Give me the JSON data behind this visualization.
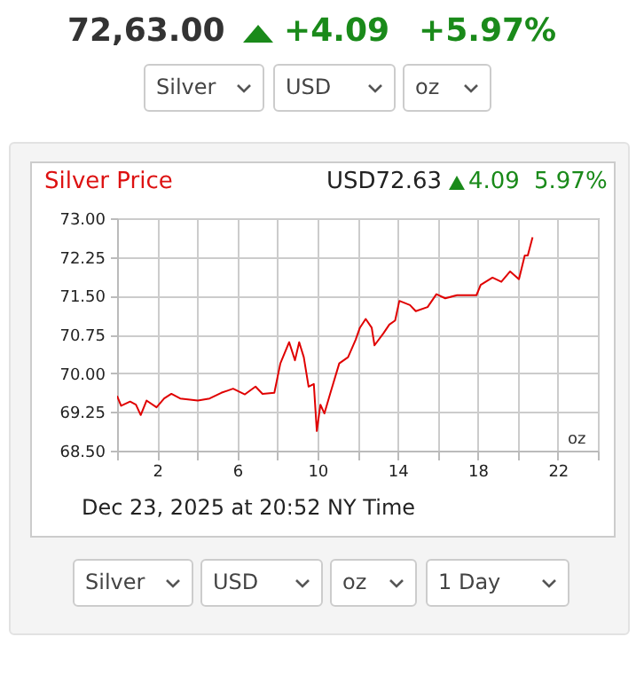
{
  "chart_data": {
    "type": "line",
    "title": "Silver Price",
    "annotations": [
      "72,63.00",
      "+4.09",
      "+5.97%",
      "Silver",
      "USD",
      "oz",
      "USD72.63",
      "4.09",
      "5.97%",
      "oz",
      "Dec 23, 2025 at 20:52 NY Time",
      "Silver",
      "USD",
      "oz",
      "1 Day"
    ],
    "x": [
      0,
      0.2,
      0.65,
      0.94,
      1.18,
      1.47,
      1.97,
      2.35,
      2.71,
      3.15,
      4.03,
      4.62,
      5.2,
      5.79,
      6.38,
      6.91,
      7.26,
      7.85,
      8.15,
      8.59,
      8.88,
      9.09,
      9.32,
      9.56,
      9.82,
      9.97,
      10.15,
      10.35,
      10.65,
      11.09,
      11.53,
      11.91,
      12.12,
      12.41,
      12.71,
      12.85,
      13.29,
      13.59,
      13.88,
      14.09,
      14.62,
      14.91,
      15.5,
      15.94,
      16.38,
      16.97,
      17.94,
      18.15,
      18.74,
      19.18,
      19.62,
      20.06,
      20.35,
      20.5,
      20.74
    ],
    "series": [
      {
        "color": "#e00000",
        "values": [
          69.56,
          69.37,
          69.45,
          69.39,
          69.19,
          69.47,
          69.34,
          69.51,
          69.6,
          69.51,
          69.47,
          69.51,
          69.62,
          69.7,
          69.59,
          69.74,
          69.6,
          69.62,
          70.19,
          70.6,
          70.25,
          70.6,
          70.31,
          69.74,
          69.79,
          68.88,
          69.39,
          69.22,
          69.62,
          70.19,
          70.31,
          70.65,
          70.88,
          71.05,
          70.88,
          70.54,
          70.77,
          70.94,
          71.02,
          71.4,
          71.32,
          71.2,
          71.28,
          71.53,
          71.45,
          71.51,
          71.51,
          71.71,
          71.85,
          71.77,
          71.97,
          71.82,
          72.28,
          72.28,
          72.63
        ]
      }
    ],
    "xlim": [
      0,
      24
    ],
    "xticks": [
      {
        "value": 0,
        "label": null
      },
      2,
      {
        "value": 4,
        "label": null
      },
      6,
      {
        "value": 8,
        "label": null
      },
      10,
      {
        "value": 12,
        "label": null
      },
      14,
      {
        "value": 16,
        "label": null
      },
      18,
      {
        "value": 20,
        "label": null
      },
      22,
      {
        "value": 24,
        "label": null
      }
    ],
    "ylim": [
      68.5,
      73
    ],
    "yticks": [
      {
        "value": 68.5,
        "label": "68.50"
      },
      {
        "value": 69.25,
        "label": "69.25"
      },
      {
        "value": 70,
        "label": "70.00"
      },
      {
        "value": 70.75,
        "label": "70.75"
      },
      {
        "value": 71.5,
        "label": "71.50"
      },
      {
        "value": 72.25,
        "label": "72.25"
      },
      {
        "value": 73,
        "label": "73.00"
      }
    ],
    "grid": true,
    "line_style": "solid",
    "marker": "none"
  }
}
